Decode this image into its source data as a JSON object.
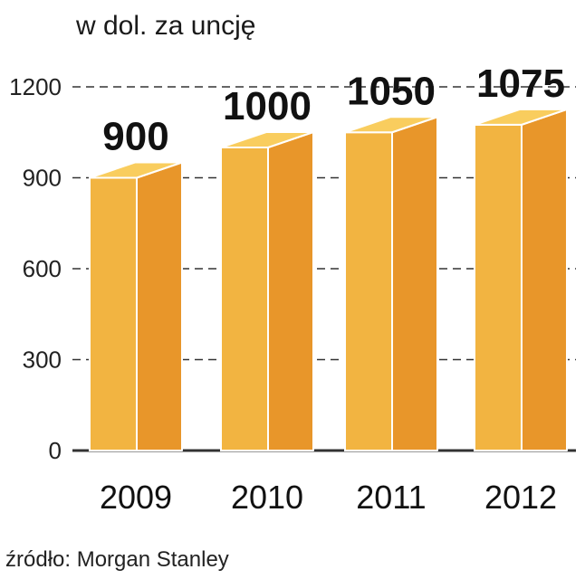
{
  "chart_data": {
    "type": "bar",
    "subtitle": "w dol. za uncję",
    "categories": [
      "2009",
      "2010",
      "2011",
      "2012"
    ],
    "values": [
      900,
      1000,
      1050,
      1075
    ],
    "value_labels": [
      "900",
      "1000",
      "1050",
      "1075"
    ],
    "y_ticks": [
      "0",
      "300",
      "600",
      "900",
      "1200"
    ],
    "ylim": [
      0,
      1200
    ],
    "grid": "horizontal, dashed",
    "source": "źródło: Morgan Stanley",
    "colors": {
      "bar_front": "#F2B441",
      "bar_side": "#E8962A",
      "bar_top": "#F9CD5E",
      "edge": "#ffffff",
      "grid": "#333333",
      "text": "#111111"
    }
  }
}
